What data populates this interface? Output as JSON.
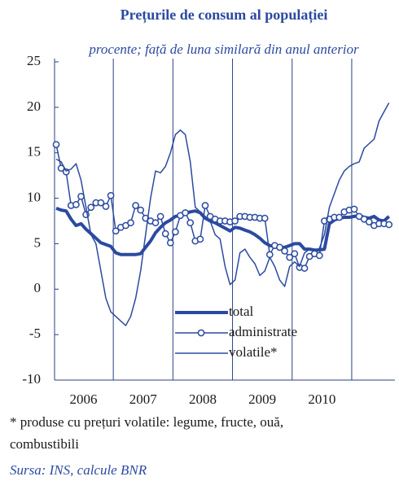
{
  "chart_data": {
    "type": "line",
    "title": "Prețurile de consum al populației",
    "subtitle": "procente; față de luna similară din anul anterior",
    "categories": [
      "2006",
      null,
      null,
      null,
      null,
      null,
      null,
      null,
      null,
      null,
      null,
      null,
      "2007",
      null,
      null,
      null,
      null,
      null,
      null,
      null,
      null,
      null,
      null,
      null,
      "2008",
      null,
      null,
      null,
      null,
      null,
      null,
      null,
      null,
      null,
      null,
      null,
      "2009",
      null,
      null,
      null,
      null,
      null,
      null,
      null,
      null,
      null,
      null,
      null,
      "2010",
      null,
      null,
      null,
      null,
      null,
      null,
      null,
      null,
      null,
      null,
      null,
      null,
      null,
      null,
      null,
      null,
      null,
      null,
      null
    ],
    "series": [
      {
        "name": "total",
        "color": "#2b4aa0",
        "width": 4,
        "markers": false,
        "values": [
          8.9,
          8.7,
          8.6,
          7.7,
          7.0,
          7.2,
          6.6,
          6.1,
          5.6,
          5.1,
          4.9,
          4.7,
          4.0,
          3.8,
          3.8,
          3.8,
          3.8,
          3.9,
          4.6,
          5.3,
          6.2,
          6.8,
          7.3,
          7.6,
          8.0,
          8.1,
          8.3,
          8.5,
          8.6,
          8.4,
          7.8,
          7.5,
          7.3,
          7.0,
          6.7,
          6.4,
          6.8,
          6.7,
          6.5,
          6.3,
          6.0,
          5.6,
          5.1,
          4.8,
          4.7,
          4.6,
          4.6,
          4.8,
          5.0,
          5.0,
          4.4,
          4.4,
          4.3,
          4.3,
          4.4,
          7.2,
          7.6,
          7.8,
          7.9,
          7.9,
          8.0,
          8.1,
          7.9,
          7.8,
          8.0,
          7.6,
          7.5,
          8.0
        ]
      },
      {
        "name": "administrate",
        "color": "#2b4aa0",
        "width": 1.5,
        "markers": true,
        "values": [
          15.9,
          13.3,
          12.9,
          9.2,
          9.3,
          10.2,
          8.2,
          9.0,
          9.5,
          9.5,
          9.1,
          10.3,
          6.4,
          6.8,
          7.0,
          7.3,
          9.2,
          8.7,
          7.8,
          7.5,
          7.3,
          8.0,
          6.1,
          5.1,
          6.3,
          8.1,
          8.4,
          7.3,
          5.3,
          5.5,
          9.2,
          8.0,
          7.7,
          7.5,
          7.5,
          7.4,
          7.5,
          8.0,
          8.0,
          7.9,
          7.9,
          7.8,
          7.8,
          3.8,
          4.8,
          4.6,
          4.2,
          3.5,
          3.9,
          2.4,
          2.3,
          3.6,
          3.9,
          3.7,
          7.5,
          7.7,
          7.9,
          7.9,
          8.5,
          8.7,
          8.8,
          8.0,
          7.7,
          7.4,
          7.0,
          7.2,
          7.2,
          7.1
        ]
      },
      {
        "name": "volatile*",
        "color": "#2b4aa0",
        "width": 1.5,
        "markers": false,
        "values": [
          14.3,
          14.0,
          13.0,
          13.2,
          13.8,
          12.0,
          9.0,
          6.0,
          5.0,
          2.0,
          -1.0,
          -2.5,
          -3.0,
          -3.5,
          -4.0,
          -3.0,
          -1.0,
          2.0,
          6.0,
          10.0,
          13.0,
          12.8,
          13.5,
          15.0,
          17.0,
          17.5,
          17.0,
          14.0,
          9.0,
          8.5,
          8.0,
          7.5,
          6.0,
          5.5,
          2.5,
          0.5,
          1.0,
          4.0,
          4.4,
          3.5,
          2.8,
          1.5,
          2.0,
          3.5,
          2.5,
          1.0,
          0.3,
          2.5,
          3.0,
          2.5,
          4.0,
          4.4,
          4.2,
          4.5,
          6.0,
          9.0,
          10.5,
          12.0,
          13.0,
          13.5,
          13.8,
          14.0,
          15.5,
          16.0,
          16.5,
          18.5,
          19.5,
          20.5
        ]
      }
    ],
    "ylim": [
      -10,
      25
    ],
    "yticks": [
      -10,
      -5,
      0,
      5,
      10,
      15,
      20,
      25
    ],
    "footnote": [
      "* produse cu prețuri volatile: legume, fructe, ouă,",
      "combustibili"
    ],
    "source": "Sursa: INS, calcule BNR"
  }
}
